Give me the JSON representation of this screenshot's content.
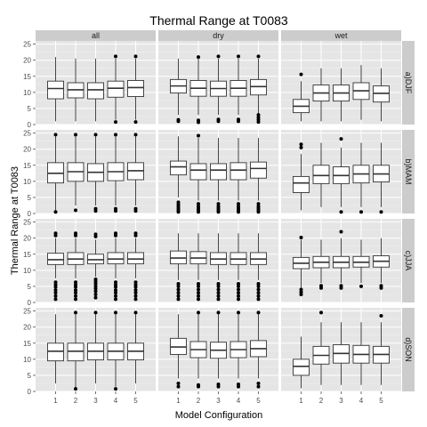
{
  "chart_data": {
    "type": "boxplot",
    "title": "Thermal Range at T0083",
    "xlabel": "Model Configuration",
    "ylabel": "Thermal Range at T0083",
    "categories": [
      "1",
      "2",
      "3",
      "4",
      "5"
    ],
    "ylim": [
      0,
      26
    ],
    "yticks": [
      0,
      5,
      10,
      15,
      20,
      25
    ],
    "columns": [
      "all",
      "dry",
      "wet"
    ],
    "rows": [
      "a)DJF",
      "b)MAM",
      "c)JJA",
      "d)SON"
    ],
    "panels": [
      {
        "row": 0,
        "col": 0,
        "boxes": [
          {
            "lo": 1,
            "q1": 8,
            "med": 11.2,
            "q3": 13.5,
            "hi": 21,
            "out": []
          },
          {
            "lo": 1,
            "q1": 8.3,
            "med": 10.8,
            "q3": 13,
            "hi": 20.5,
            "out": []
          },
          {
            "lo": 1,
            "q1": 8,
            "med": 10.8,
            "q3": 13,
            "hi": 20.5,
            "out": []
          },
          {
            "lo": 1.5,
            "q1": 8.5,
            "med": 11.3,
            "q3": 13.5,
            "hi": 20.5,
            "out": [
              0.8,
              21.2
            ]
          },
          {
            "lo": 1.5,
            "q1": 8.7,
            "med": 11.5,
            "q3": 13.7,
            "hi": 20.5,
            "out": [
              0.8,
              21.2
            ]
          }
        ]
      },
      {
        "row": 0,
        "col": 1,
        "boxes": [
          {
            "lo": 3,
            "q1": 9.8,
            "med": 12,
            "q3": 14,
            "hi": 20.5,
            "out": [
              1,
              1.5
            ]
          },
          {
            "lo": 3,
            "q1": 8.8,
            "med": 11.3,
            "q3": 13.7,
            "hi": 20.5,
            "out": [
              0.7,
              1.3,
              21
            ]
          },
          {
            "lo": 3,
            "q1": 8.8,
            "med": 11.2,
            "q3": 13.5,
            "hi": 20.5,
            "out": [
              1,
              1.6,
              21.2
            ]
          },
          {
            "lo": 3,
            "q1": 8.8,
            "med": 11.3,
            "q3": 13.7,
            "hi": 20.5,
            "out": [
              1,
              1.6,
              21.2
            ]
          },
          {
            "lo": 3.5,
            "q1": 9.2,
            "med": 11.8,
            "q3": 14,
            "hi": 20.5,
            "out": [
              0.8,
              1.5,
              2.2,
              3,
              21.2
            ]
          }
        ]
      },
      {
        "row": 0,
        "col": 2,
        "boxes": [
          {
            "lo": 1,
            "q1": 3.7,
            "med": 5.7,
            "q3": 7.8,
            "hi": 13.5,
            "out": [
              15.6
            ]
          },
          {
            "lo": 1,
            "q1": 7.3,
            "med": 9.8,
            "q3": 12.3,
            "hi": 17.5,
            "out": []
          },
          {
            "lo": 1,
            "q1": 7.3,
            "med": 9.8,
            "q3": 12.3,
            "hi": 17.5,
            "out": []
          },
          {
            "lo": 1.5,
            "q1": 7.8,
            "med": 10.5,
            "q3": 13,
            "hi": 18.5,
            "out": []
          },
          {
            "lo": 1,
            "q1": 7,
            "med": 9.7,
            "q3": 12,
            "hi": 17.5,
            "out": []
          }
        ]
      },
      {
        "row": 1,
        "col": 0,
        "boxes": [
          {
            "lo": 1,
            "q1": 9.5,
            "med": 12.5,
            "q3": 15.8,
            "hi": 24,
            "out": [
              0.5,
              24.5
            ]
          },
          {
            "lo": 2.5,
            "q1": 10,
            "med": 13,
            "q3": 15.8,
            "hi": 24,
            "out": [
              1,
              24.5
            ]
          },
          {
            "lo": 2.5,
            "q1": 10,
            "med": 12.8,
            "q3": 15.5,
            "hi": 24,
            "out": [
              0.8,
              1.5,
              24.5
            ]
          },
          {
            "lo": 2.5,
            "q1": 10.2,
            "med": 13,
            "q3": 15.8,
            "hi": 24,
            "out": [
              0.8,
              1.5,
              24.5
            ]
          },
          {
            "lo": 2.5,
            "q1": 10.5,
            "med": 13.3,
            "q3": 15.8,
            "hi": 24,
            "out": [
              0.8,
              1.5,
              24.5
            ]
          }
        ]
      },
      {
        "row": 1,
        "col": 1,
        "boxes": [
          {
            "lo": 5,
            "q1": 12,
            "med": 14.5,
            "q3": 16.3,
            "hi": 24,
            "out": [
              0.5,
              1,
              1.6,
              2.2,
              2.8,
              3.5
            ]
          },
          {
            "lo": 4,
            "q1": 10.5,
            "med": 13.5,
            "q3": 15.5,
            "hi": 23.5,
            "out": [
              0.5,
              1,
              1.6,
              2.2,
              3,
              24.2
            ]
          },
          {
            "lo": 4,
            "q1": 10.5,
            "med": 13.5,
            "q3": 15.5,
            "hi": 23.5,
            "out": [
              0.5,
              1,
              1.6,
              2.2,
              3
            ]
          },
          {
            "lo": 4,
            "q1": 10.5,
            "med": 13.5,
            "q3": 15.8,
            "hi": 23.5,
            "out": [
              0.5,
              1,
              1.6,
              2.2,
              3
            ]
          },
          {
            "lo": 4,
            "q1": 11,
            "med": 14,
            "q3": 16,
            "hi": 23.5,
            "out": [
              0.5,
              1,
              1.6,
              2.2,
              3
            ]
          }
        ]
      },
      {
        "row": 1,
        "col": 2,
        "boxes": [
          {
            "lo": 1,
            "q1": 6.5,
            "med": 9.5,
            "q3": 11.5,
            "hi": 18.5,
            "out": [
              20.5,
              21.5
            ]
          },
          {
            "lo": 2,
            "q1": 9.3,
            "med": 11.8,
            "q3": 15,
            "hi": 22,
            "out": []
          },
          {
            "lo": 2,
            "q1": 9.3,
            "med": 11.8,
            "q3": 14.5,
            "hi": 20.5,
            "out": [
              0.5,
              23.2
            ]
          },
          {
            "lo": 2,
            "q1": 9.5,
            "med": 12.3,
            "q3": 15,
            "hi": 22,
            "out": [
              0.5
            ]
          },
          {
            "lo": 2,
            "q1": 9.8,
            "med": 12.3,
            "q3": 15,
            "hi": 22,
            "out": [
              0.5
            ]
          }
        ]
      },
      {
        "row": 2,
        "col": 0,
        "boxes": [
          {
            "lo": 7.5,
            "q1": 11.8,
            "med": 13.3,
            "q3": 15.3,
            "hi": 20,
            "out": [
              1,
              2,
              3,
              3.8,
              4.8,
              5.5,
              6.3,
              20.8,
              21.5
            ]
          },
          {
            "lo": 7.5,
            "q1": 11.8,
            "med": 13.5,
            "q3": 15.5,
            "hi": 20,
            "out": [
              1,
              2,
              3,
              3.8,
              4.8,
              5.5,
              6.3,
              20.8,
              21.5
            ]
          },
          {
            "lo": 8,
            "q1": 12,
            "med": 13.3,
            "q3": 15,
            "hi": 19.5,
            "out": [
              1.5,
              2.5,
              3.5,
              4.3,
              5,
              5.8,
              6.5,
              7.2,
              20.5,
              21.2
            ]
          },
          {
            "lo": 7.5,
            "q1": 12,
            "med": 13.5,
            "q3": 15.5,
            "hi": 20,
            "out": [
              1,
              2,
              3,
              3.8,
              4.8,
              5.5,
              6.3,
              20.8,
              21.5
            ]
          },
          {
            "lo": 7.5,
            "q1": 12,
            "med": 13.5,
            "q3": 15.5,
            "hi": 20,
            "out": [
              1,
              2,
              3,
              3.8,
              4.8,
              5.5,
              6.3,
              20.8,
              21.5
            ]
          }
        ]
      },
      {
        "row": 2,
        "col": 1,
        "boxes": [
          {
            "lo": 7,
            "q1": 12,
            "med": 13.8,
            "q3": 16,
            "hi": 21.5,
            "out": [
              1,
              2,
              3,
              4,
              5,
              5.8
            ]
          },
          {
            "lo": 7,
            "q1": 12,
            "med": 13.8,
            "q3": 15.8,
            "hi": 21.5,
            "out": [
              1,
              2,
              3,
              4,
              5,
              5.8
            ]
          },
          {
            "lo": 7,
            "q1": 11.8,
            "med": 13.5,
            "q3": 15.5,
            "hi": 21.5,
            "out": [
              1,
              2,
              3,
              4,
              5,
              5.8
            ]
          },
          {
            "lo": 7,
            "q1": 11.8,
            "med": 13.5,
            "q3": 15.5,
            "hi": 21.5,
            "out": [
              1,
              2,
              3,
              4,
              5,
              5.8
            ]
          },
          {
            "lo": 7,
            "q1": 11.8,
            "med": 13.5,
            "q3": 15.5,
            "hi": 21.5,
            "out": [
              1,
              2,
              3,
              4,
              5,
              5.8
            ]
          }
        ]
      },
      {
        "row": 2,
        "col": 2,
        "boxes": [
          {
            "lo": 4.5,
            "q1": 10.5,
            "med": 12.2,
            "q3": 14,
            "hi": 19.5,
            "out": [
              2.5,
              3.2,
              4,
              20.2
            ]
          },
          {
            "lo": 6,
            "q1": 10.8,
            "med": 12.5,
            "q3": 14.3,
            "hi": 19.5,
            "out": [
              4.5,
              5.2
            ]
          },
          {
            "lo": 6,
            "q1": 10.8,
            "med": 12.5,
            "q3": 14.3,
            "hi": 20,
            "out": [
              4.5,
              5.2,
              22
            ]
          },
          {
            "lo": 6,
            "q1": 11,
            "med": 12.5,
            "q3": 14.3,
            "hi": 19.5,
            "out": [
              5
            ]
          },
          {
            "lo": 6,
            "q1": 11,
            "med": 12.8,
            "q3": 14.5,
            "hi": 20,
            "out": [
              4.5,
              5.2
            ]
          }
        ]
      },
      {
        "row": 3,
        "col": 0,
        "boxes": [
          {
            "lo": 2.5,
            "q1": 9.5,
            "med": 12.5,
            "q3": 15,
            "hi": 24,
            "out": []
          },
          {
            "lo": 1,
            "q1": 9.5,
            "med": 12.5,
            "q3": 15,
            "hi": 24,
            "out": [
              0.8,
              24.5
            ]
          },
          {
            "lo": 2.5,
            "q1": 9.8,
            "med": 12.5,
            "q3": 15,
            "hi": 24,
            "out": [
              24.5
            ]
          },
          {
            "lo": 1.5,
            "q1": 9.8,
            "med": 12.5,
            "q3": 15,
            "hi": 24,
            "out": [
              0.8,
              24.5
            ]
          },
          {
            "lo": 2.5,
            "q1": 9.8,
            "med": 12.5,
            "q3": 15,
            "hi": 24,
            "out": [
              24.5
            ]
          }
        ]
      },
      {
        "row": 3,
        "col": 1,
        "boxes": [
          {
            "lo": 4,
            "q1": 11.5,
            "med": 13.8,
            "q3": 16.5,
            "hi": 24,
            "out": [
              1.5,
              2.5
            ]
          },
          {
            "lo": 4,
            "q1": 10.5,
            "med": 13,
            "q3": 15.5,
            "hi": 24,
            "out": [
              1.5,
              2,
              24.5
            ]
          },
          {
            "lo": 4,
            "q1": 10.3,
            "med": 12.8,
            "q3": 15.3,
            "hi": 24,
            "out": [
              1.5,
              2.2,
              24.5
            ]
          },
          {
            "lo": 4,
            "q1": 10.5,
            "med": 13,
            "q3": 15.5,
            "hi": 24,
            "out": [
              1.5,
              2.2,
              24.5
            ]
          },
          {
            "lo": 4,
            "q1": 10.8,
            "med": 13.3,
            "q3": 15.8,
            "hi": 24,
            "out": [
              1.5,
              2.5,
              24.5
            ]
          }
        ]
      },
      {
        "row": 3,
        "col": 2,
        "boxes": [
          {
            "lo": 1,
            "q1": 5,
            "med": 7.8,
            "q3": 10,
            "hi": 17,
            "out": []
          },
          {
            "lo": 2,
            "q1": 8.5,
            "med": 11.2,
            "q3": 14,
            "hi": 21.5,
            "out": [
              24.5
            ]
          },
          {
            "lo": 2,
            "q1": 8.8,
            "med": 11.8,
            "q3": 14.5,
            "hi": 21.5,
            "out": []
          },
          {
            "lo": 2,
            "q1": 8.8,
            "med": 11.5,
            "q3": 14.3,
            "hi": 21.5,
            "out": []
          },
          {
            "lo": 2,
            "q1": 8.8,
            "med": 11.5,
            "q3": 14,
            "hi": 21.5,
            "out": [
              23.5
            ]
          }
        ]
      }
    ]
  }
}
